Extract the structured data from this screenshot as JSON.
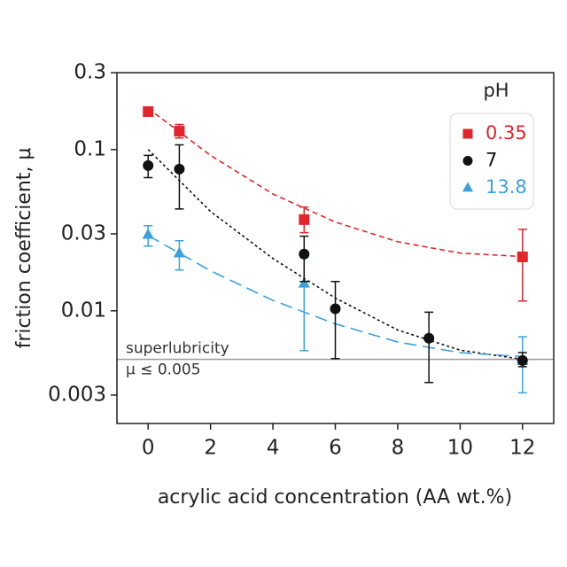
{
  "chart_data": {
    "type": "scatter",
    "xlabel": "acrylic acid concentration (AA wt.%)",
    "ylabel": "friction coefficient, μ",
    "xlim": [
      -1,
      13
    ],
    "xticks": [
      0,
      2,
      4,
      6,
      8,
      10,
      12
    ],
    "ylim": [
      0.002,
      0.3
    ],
    "yticks": [
      0.003,
      0.01,
      0.03,
      0.1,
      0.3
    ],
    "ylog": true,
    "legend_title": "pH",
    "hline": {
      "value": 0.005,
      "color": "#9a9a9a",
      "labels": [
        "superlubricity",
        "μ ≤ 0.005"
      ]
    },
    "series": [
      {
        "name": "0.35",
        "color": "#e3242b",
        "marker": "square",
        "x": [
          0,
          1,
          5,
          12
        ],
        "values": [
          0.172,
          0.13,
          0.0368,
          0.0216
        ],
        "lower": [
          0.165,
          0.118,
          0.0305,
          0.0115
        ],
        "upper": [
          0.18,
          0.143,
          0.044,
          0.032
        ],
        "fit": {
          "dash": [
            6,
            4
          ],
          "x": [
            0,
            2,
            4,
            6,
            8,
            10,
            12
          ],
          "values": [
            0.18,
            0.092,
            0.053,
            0.0355,
            0.0268,
            0.0228,
            0.0217
          ]
        }
      },
      {
        "name": "7",
        "color": "#111111",
        "marker": "circle",
        "x": [
          0,
          1,
          5,
          6,
          9,
          12
        ],
        "values": [
          0.0796,
          0.0757,
          0.0225,
          0.0103,
          0.00676,
          0.00492
        ],
        "lower": [
          0.067,
          0.0428,
          0.0152,
          0.00505,
          0.00359,
          0.0045
        ],
        "upper": [
          0.092,
          0.107,
          0.029,
          0.0152,
          0.0098,
          0.0055
        ],
        "fit": {
          "dash": [
            3,
            3
          ],
          "x": [
            0,
            2,
            4,
            6,
            8,
            10,
            12
          ],
          "values": [
            0.1,
            0.0413,
            0.0211,
            0.012,
            0.0076,
            0.0057,
            0.005
          ]
        }
      },
      {
        "name": "13.8",
        "color": "#3aa3dc",
        "marker": "triangle",
        "x": [
          0,
          1,
          5,
          12
        ],
        "values": [
          0.0297,
          0.0228,
          0.0148,
          0.0049
        ],
        "lower": [
          0.0252,
          0.0179,
          0.00566,
          0.0031
        ],
        "upper": [
          0.0337,
          0.0272,
          0.0214,
          0.0069
        ],
        "fit": {
          "dash": [
            14,
            7
          ],
          "x": [
            0,
            2,
            4,
            6,
            8,
            10,
            12
          ],
          "values": [
            0.0293,
            0.0177,
            0.0116,
            0.0083,
            0.0064,
            0.0055,
            0.0052
          ]
        }
      }
    ]
  }
}
